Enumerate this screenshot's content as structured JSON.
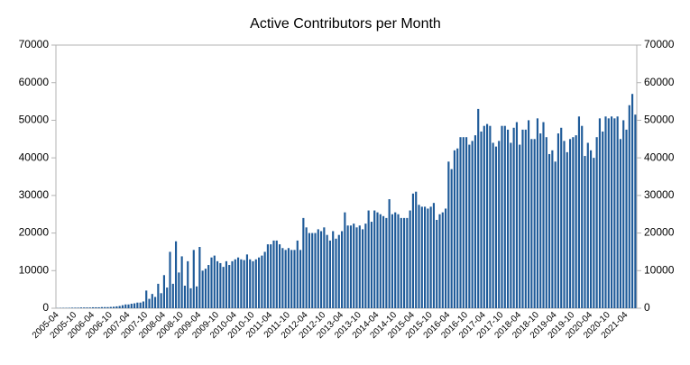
{
  "chart_data": {
    "type": "bar",
    "title": "Active Contributors per Month",
    "color": "#1f5b99",
    "categories": [
      "2005-04",
      null,
      null,
      null,
      null,
      null,
      "2005-10",
      null,
      null,
      null,
      null,
      null,
      "2006-04",
      null,
      null,
      null,
      null,
      null,
      "2006-10",
      null,
      null,
      null,
      null,
      null,
      "2007-04",
      null,
      null,
      null,
      null,
      null,
      "2007-10",
      null,
      null,
      null,
      null,
      null,
      "2008-04",
      null,
      null,
      null,
      null,
      null,
      "2008-10",
      null,
      null,
      null,
      null,
      null,
      "2009-04",
      null,
      null,
      null,
      null,
      null,
      "2009-10",
      null,
      null,
      null,
      null,
      null,
      "2010-04",
      null,
      null,
      null,
      null,
      null,
      "2010-10",
      null,
      null,
      null,
      null,
      null,
      "2011-04",
      null,
      null,
      null,
      null,
      null,
      "2011-10",
      null,
      null,
      null,
      null,
      null,
      "2012-04",
      null,
      null,
      null,
      null,
      null,
      "2012-10",
      null,
      null,
      null,
      null,
      null,
      "2013-04",
      null,
      null,
      null,
      null,
      null,
      "2013-10",
      null,
      null,
      null,
      null,
      null,
      "2014-04",
      null,
      null,
      null,
      null,
      null,
      "2014-10",
      null,
      null,
      null,
      null,
      null,
      "2015-04",
      null,
      null,
      null,
      null,
      null,
      "2015-10",
      null,
      null,
      null,
      null,
      null,
      "2016-04",
      null,
      null,
      null,
      null,
      null,
      "2016-10",
      null,
      null,
      null,
      null,
      null,
      "2017-04",
      null,
      null,
      null,
      null,
      null,
      "2017-10",
      null,
      null,
      null,
      null,
      null,
      "2018-04",
      null,
      null,
      null,
      null,
      null,
      "2018-10",
      null,
      null,
      null,
      null,
      null,
      "2019-04",
      null,
      null,
      null,
      null,
      null,
      "2019-10",
      null,
      null,
      null,
      null,
      null,
      "2020-04",
      null,
      null,
      null,
      null,
      null,
      "2020-10",
      null,
      null,
      null,
      null,
      null,
      "2021-04",
      null,
      null,
      null
    ],
    "values": [
      50,
      80,
      100,
      100,
      120,
      150,
      150,
      150,
      200,
      200,
      200,
      200,
      250,
      250,
      250,
      300,
      300,
      300,
      350,
      400,
      500,
      600,
      800,
      1000,
      1000,
      1200,
      1300,
      1500,
      1500,
      1800,
      4700,
      2500,
      3800,
      3000,
      6500,
      4000,
      8800,
      5500,
      15000,
      6500,
      17800,
      9500,
      13800,
      6000,
      12500,
      5300,
      15500,
      5800,
      16300,
      10000,
      10500,
      11500,
      13500,
      14000,
      12500,
      12000,
      11000,
      12500,
      11500,
      12500,
      13000,
      13500,
      13000,
      12800,
      14300,
      13000,
      12500,
      13000,
      13500,
      14000,
      15000,
      17000,
      17000,
      18000,
      18000,
      17000,
      16000,
      15500,
      16000,
      15500,
      15500,
      18000,
      15500,
      24000,
      21500,
      20000,
      20000,
      20000,
      21000,
      20500,
      21500,
      19500,
      18000,
      20500,
      18500,
      19500,
      20500,
      25500,
      22000,
      22000,
      22500,
      21500,
      22000,
      21000,
      22500,
      26000,
      23000,
      26000,
      25500,
      25000,
      24500,
      24000,
      29000,
      25000,
      25500,
      25000,
      24000,
      24000,
      24000,
      26000,
      30500,
      31000,
      27500,
      27000,
      27000,
      26500,
      27000,
      28000,
      23500,
      25000,
      25500,
      26500,
      39000,
      37000,
      42000,
      42500,
      45500,
      45500,
      45500,
      43500,
      44500,
      46000,
      53000,
      47000,
      48500,
      49000,
      48500,
      44000,
      43000,
      44500,
      48500,
      48500,
      47500,
      44000,
      48000,
      49500,
      43500,
      47500,
      47500,
      50000,
      45000,
      45000,
      50500,
      46500,
      49500,
      45500,
      41000,
      42000,
      39000,
      46500,
      48000,
      44500,
      41500,
      45000,
      45500,
      46000,
      51000,
      48500,
      40500,
      44000,
      42000,
      40000,
      45500,
      50500,
      47000,
      51000,
      50500,
      51000,
      50500,
      51000,
      45000,
      50000,
      47500,
      54000,
      57000,
      51500
    ],
    "ylim": [
      0,
      70000
    ],
    "yticks": [
      0,
      10000,
      20000,
      30000,
      40000,
      50000,
      60000,
      70000
    ],
    "y2lim": [
      0,
      70000
    ],
    "y2ticks": [
      0,
      10000,
      20000,
      30000,
      40000,
      50000,
      60000,
      70000
    ],
    "grid": false
  }
}
